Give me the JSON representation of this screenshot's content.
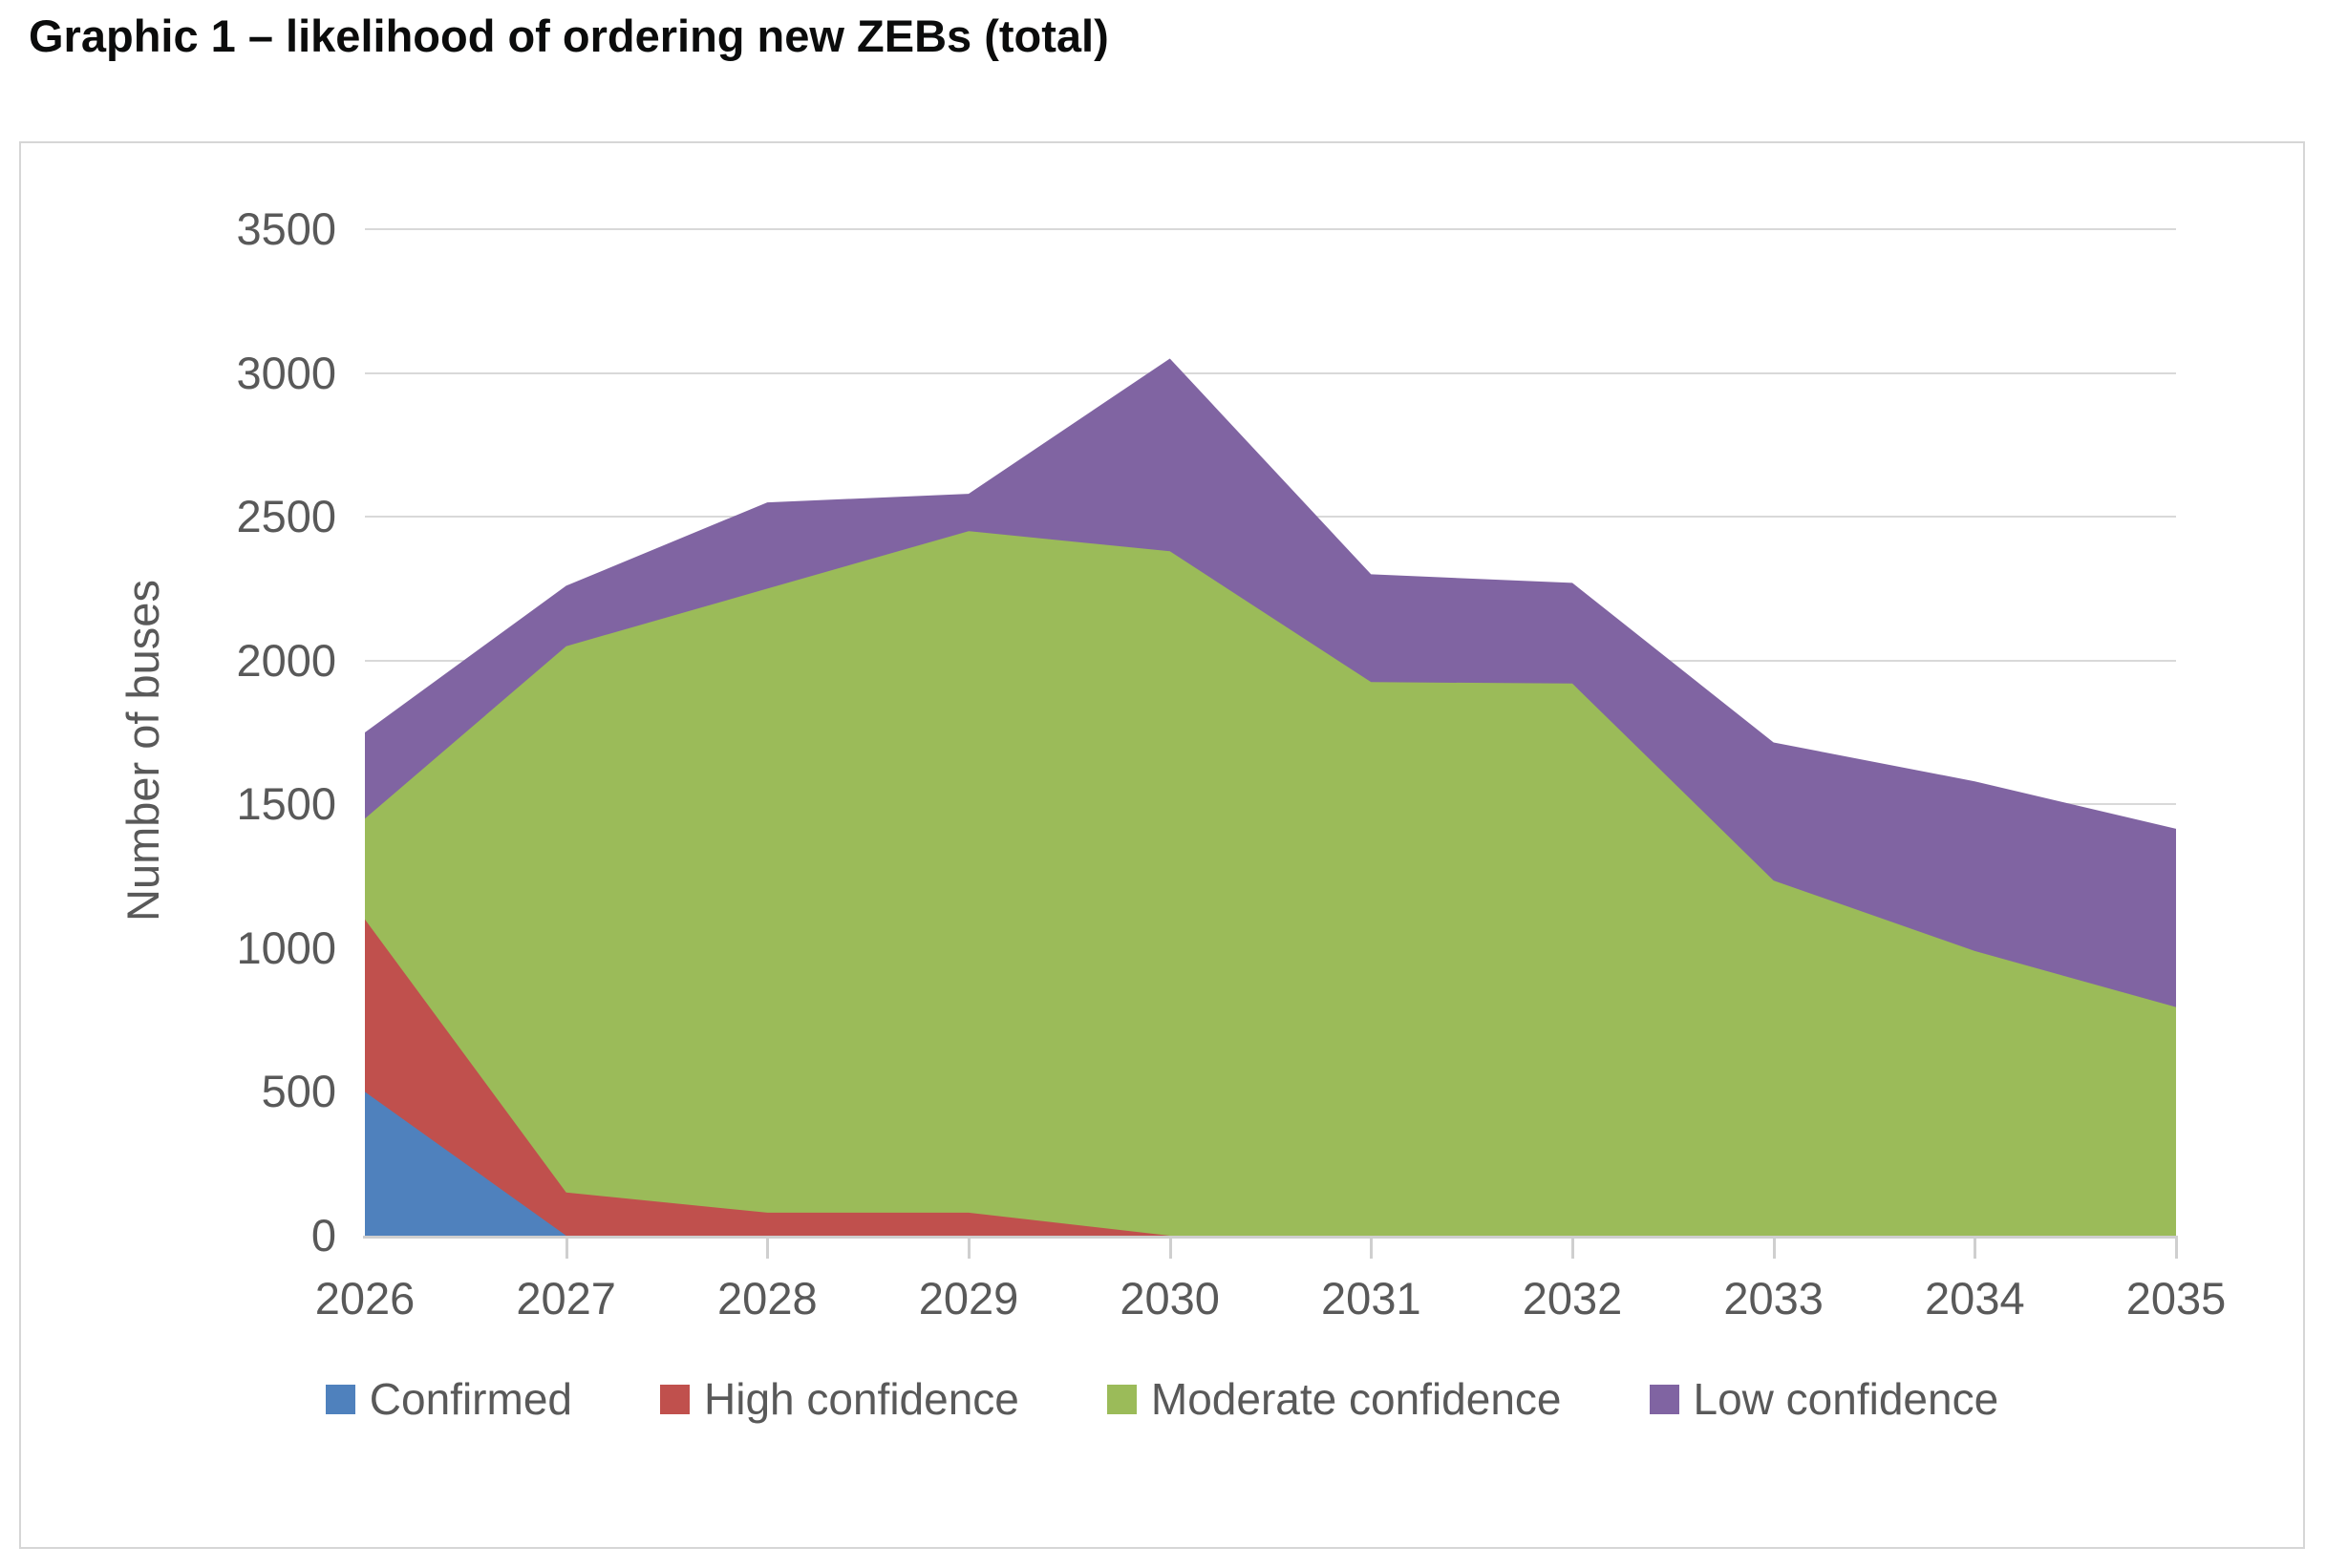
{
  "page_title": "Graphic 1 – likelihood of ordering new ZEBs (total)",
  "colors": {
    "confirmed": "#4F81BD",
    "high_confidence": "#C0504D",
    "moderate_confidence": "#9BBB59",
    "low_confidence": "#8064A2",
    "axis_text": "#595959",
    "gridline": "#D9D9D9",
    "axis_line": "#CFCFCF",
    "frame_border": "#D6D6D6",
    "title_text": "#0B0C0C"
  },
  "chart_data": {
    "type": "area",
    "stacked": true,
    "title": "Graphic 1 – likelihood of ordering new ZEBs (total)",
    "xlabel": "",
    "ylabel": "Number of buses",
    "ylim": [
      0,
      3500
    ],
    "ytick_interval": 500,
    "ytick_labels": [
      "0",
      "500",
      "1000",
      "1500",
      "2000",
      "2500",
      "3000",
      "3500"
    ],
    "grid": true,
    "legend_position": "bottom",
    "categories": [
      "2026",
      "2027",
      "2028",
      "2029",
      "2030",
      "2031",
      "2032",
      "2033",
      "2034",
      "2035"
    ],
    "series": [
      {
        "name": "Confirmed",
        "color": "#4F81BD",
        "values": [
          500,
          0,
          0,
          0,
          0,
          0,
          0,
          0,
          0,
          0
        ]
      },
      {
        "name": "High confidence",
        "color": "#C0504D",
        "values": [
          600,
          150,
          80,
          80,
          0,
          0,
          0,
          0,
          0,
          0
        ]
      },
      {
        "name": "Moderate confidence",
        "color": "#9BBB59",
        "values": [
          350,
          1900,
          2170,
          2370,
          2380,
          1925,
          1920,
          1235,
          990,
          795
        ]
      },
      {
        "name": "Low confidence",
        "color": "#8064A2",
        "values": [
          300,
          210,
          300,
          130,
          670,
          375,
          350,
          480,
          590,
          620
        ]
      }
    ],
    "stacked_totals": [
      1750,
      2260,
      2550,
      2580,
      3050,
      2300,
      2270,
      1715,
      1580,
      1415
    ]
  }
}
